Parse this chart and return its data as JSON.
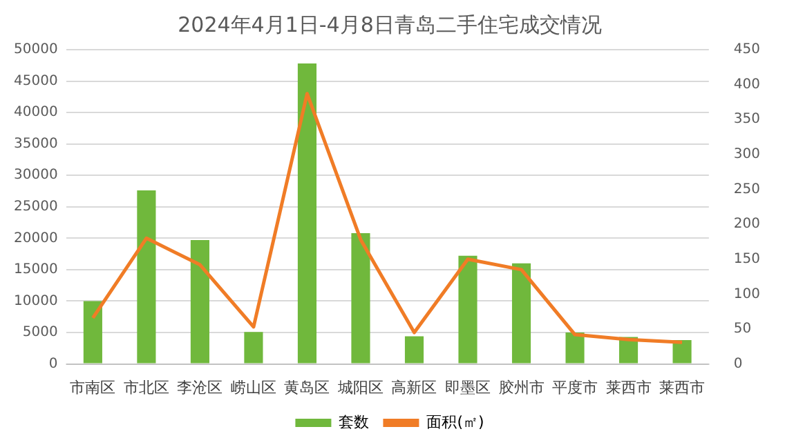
{
  "chart_data": {
    "type": "bar",
    "title": "2024年4月1日-4月8日青岛二手住宅成交情况",
    "categories": [
      "市南区",
      "市北区",
      "李沧区",
      "崂山区",
      "黄岛区",
      "城阳区",
      "高新区",
      "即墨区",
      "胶州市",
      "平度市",
      "莱西市",
      "莱西市"
    ],
    "series": [
      {
        "name": "套数",
        "color": "#70b83c",
        "values": [
          10000,
          27600,
          19700,
          5100,
          47800,
          20800,
          4400,
          17200,
          16000,
          5000,
          4300,
          3800
        ]
      },
      {
        "name": "面积(㎡)",
        "type": "line",
        "axis": "y2",
        "color": "#f07c26",
        "values": [
          66,
          180,
          142,
          53,
          387,
          178,
          45,
          150,
          135,
          42,
          35,
          31
        ]
      }
    ],
    "ylim": [
      0,
      50000
    ],
    "yticks": [
      0,
      5000,
      10000,
      15000,
      20000,
      25000,
      30000,
      35000,
      40000,
      45000,
      50000
    ],
    "y2lim": [
      0,
      450
    ],
    "y2ticks": [
      0,
      50,
      100,
      150,
      200,
      250,
      300,
      350,
      400,
      450
    ],
    "grid": "y",
    "legend": "bottom",
    "marker": "none"
  }
}
